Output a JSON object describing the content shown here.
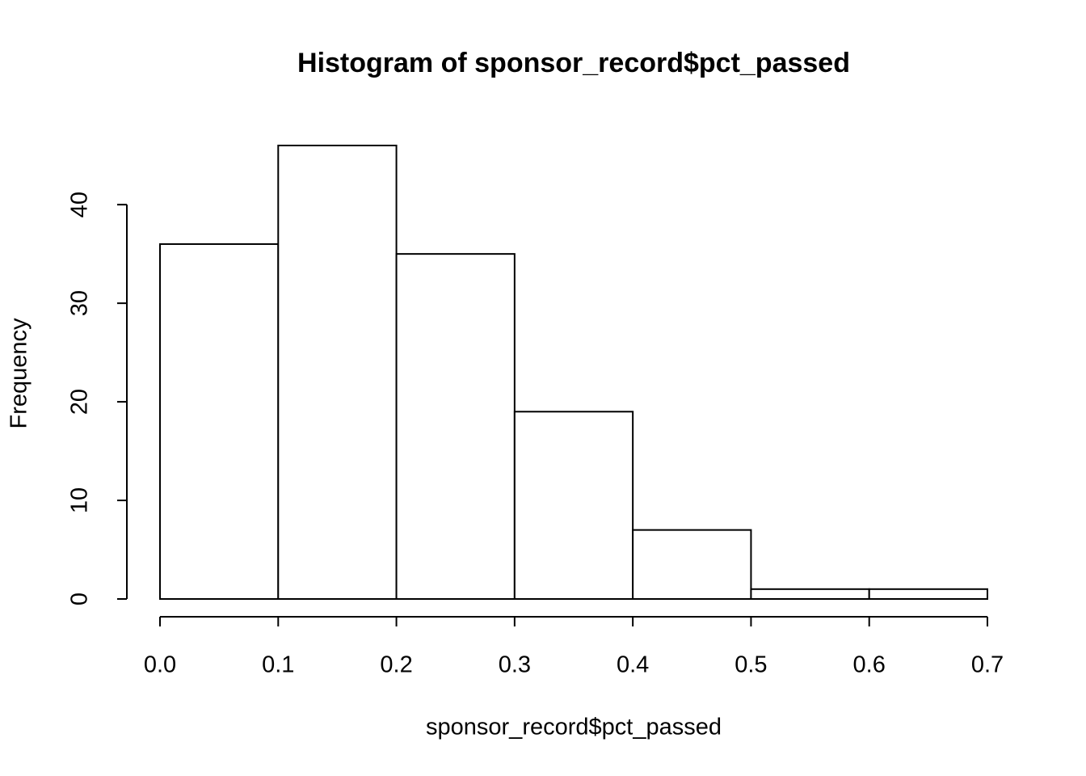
{
  "chart_data": {
    "type": "histogram",
    "title": "Histogram of sponsor_record$pct_passed",
    "x_label": "sponsor_record$pct_passed",
    "y_label": "Frequency",
    "bins": [
      0,
      0.1,
      0.2,
      0.3,
      0.4,
      0.5,
      0.6,
      0.7
    ],
    "values": [
      36,
      46,
      35,
      19,
      7,
      1,
      1
    ],
    "color": "#ffffff",
    "xlim": [
      0,
      0.7
    ],
    "ylim": [
      0,
      46
    ],
    "xticks": [
      {
        "value": 0,
        "label": "0.0"
      },
      0.1,
      0.2,
      0.3,
      0.4,
      0.5,
      0.6,
      0.7
    ],
    "yticks": [
      0,
      10,
      20,
      30,
      40
    ],
    "grid": false
  }
}
